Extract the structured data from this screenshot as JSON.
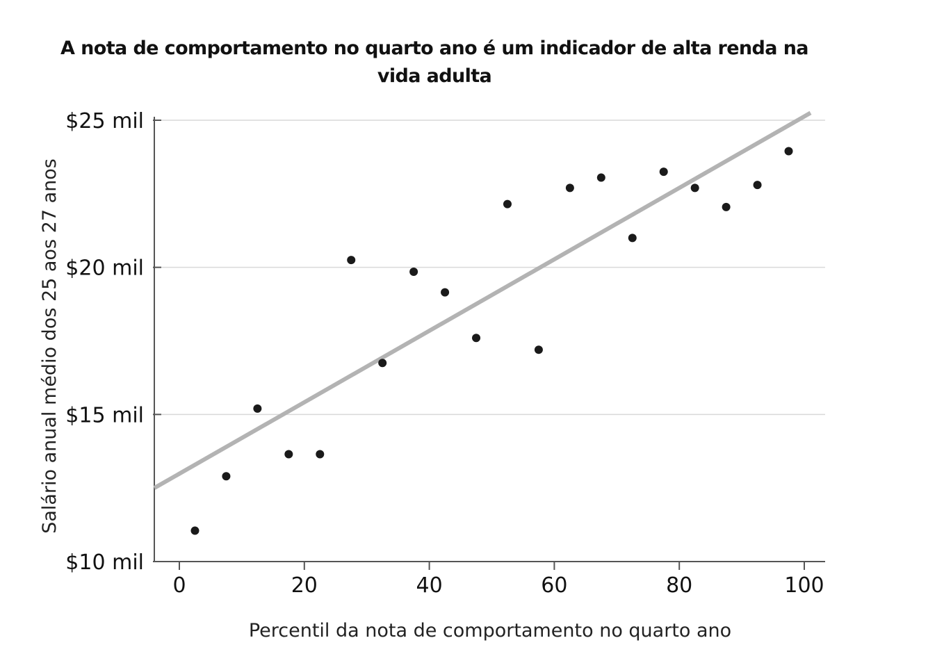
{
  "chart_data": {
    "type": "scatter",
    "title": "A nota de comportamento no quarto ano é um indicador de alta renda na vida adulta",
    "xlabel": "Percentil da nota de comportamento no quarto ano",
    "ylabel": "Salário anual médio dos 25 aos 27 anos",
    "xlim": [
      -4,
      103
    ],
    "ylim": [
      10,
      25
    ],
    "x_ticks": [
      0,
      20,
      40,
      60,
      80,
      100
    ],
    "x_tick_labels": [
      "0",
      "20",
      "40",
      "60",
      "80",
      "100"
    ],
    "y_ticks": [
      10,
      15,
      20,
      25
    ],
    "y_tick_labels": [
      "$10 mil",
      "$15 mil",
      "$20 mil",
      "$25 mil"
    ],
    "grid": "horizontal",
    "points": [
      {
        "x": 2.5,
        "y": 11.05
      },
      {
        "x": 7.5,
        "y": 12.9
      },
      {
        "x": 12.5,
        "y": 15.2
      },
      {
        "x": 17.5,
        "y": 13.65
      },
      {
        "x": 22.5,
        "y": 13.65
      },
      {
        "x": 27.5,
        "y": 20.25
      },
      {
        "x": 32.5,
        "y": 16.75
      },
      {
        "x": 37.5,
        "y": 19.85
      },
      {
        "x": 42.5,
        "y": 19.15
      },
      {
        "x": 47.5,
        "y": 17.6
      },
      {
        "x": 52.5,
        "y": 22.15
      },
      {
        "x": 57.5,
        "y": 17.2
      },
      {
        "x": 62.5,
        "y": 22.7
      },
      {
        "x": 67.5,
        "y": 23.05
      },
      {
        "x": 72.5,
        "y": 21.0
      },
      {
        "x": 77.5,
        "y": 23.25
      },
      {
        "x": 82.5,
        "y": 22.7
      },
      {
        "x": 87.5,
        "y": 22.05
      },
      {
        "x": 92.5,
        "y": 22.8
      },
      {
        "x": 97.5,
        "y": 23.95
      }
    ],
    "trend_line": {
      "x0": -4,
      "y0": 12.5,
      "x1": 101,
      "y1": 25.25
    },
    "point_color": "#1a1a1a",
    "trend_color": "#b3b3b3",
    "grid_color": "#d9d9d9",
    "axis_color": "#555555"
  }
}
